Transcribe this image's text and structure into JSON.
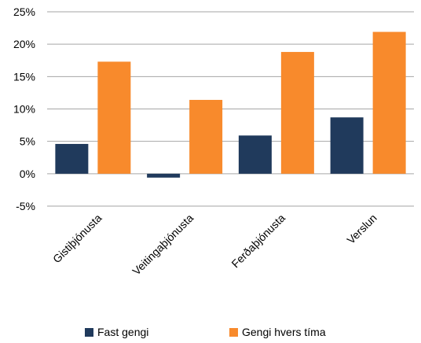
{
  "chart_data": {
    "type": "bar",
    "title": "",
    "xlabel": "",
    "ylabel": "",
    "categories": [
      "Gistiþjónusta",
      "Veitingaþjónusta",
      "Ferðaþjónusta",
      "Verslun"
    ],
    "series": [
      {
        "name": "Fast gengi",
        "color": "#203a5c",
        "values": [
          4.6,
          -0.6,
          5.9,
          8.7
        ]
      },
      {
        "name": "Gengi hvers tíma",
        "color": "#f88a2c",
        "values": [
          17.3,
          11.4,
          18.8,
          21.9
        ]
      }
    ],
    "ylim": [
      -5,
      25
    ],
    "yticks": [
      -5,
      0,
      5,
      10,
      15,
      20,
      25
    ],
    "ytick_labels": [
      "-5%",
      "0%",
      "5%",
      "10%",
      "15%",
      "20%",
      "25%"
    ],
    "grid": true,
    "legend_position": "bottom"
  }
}
